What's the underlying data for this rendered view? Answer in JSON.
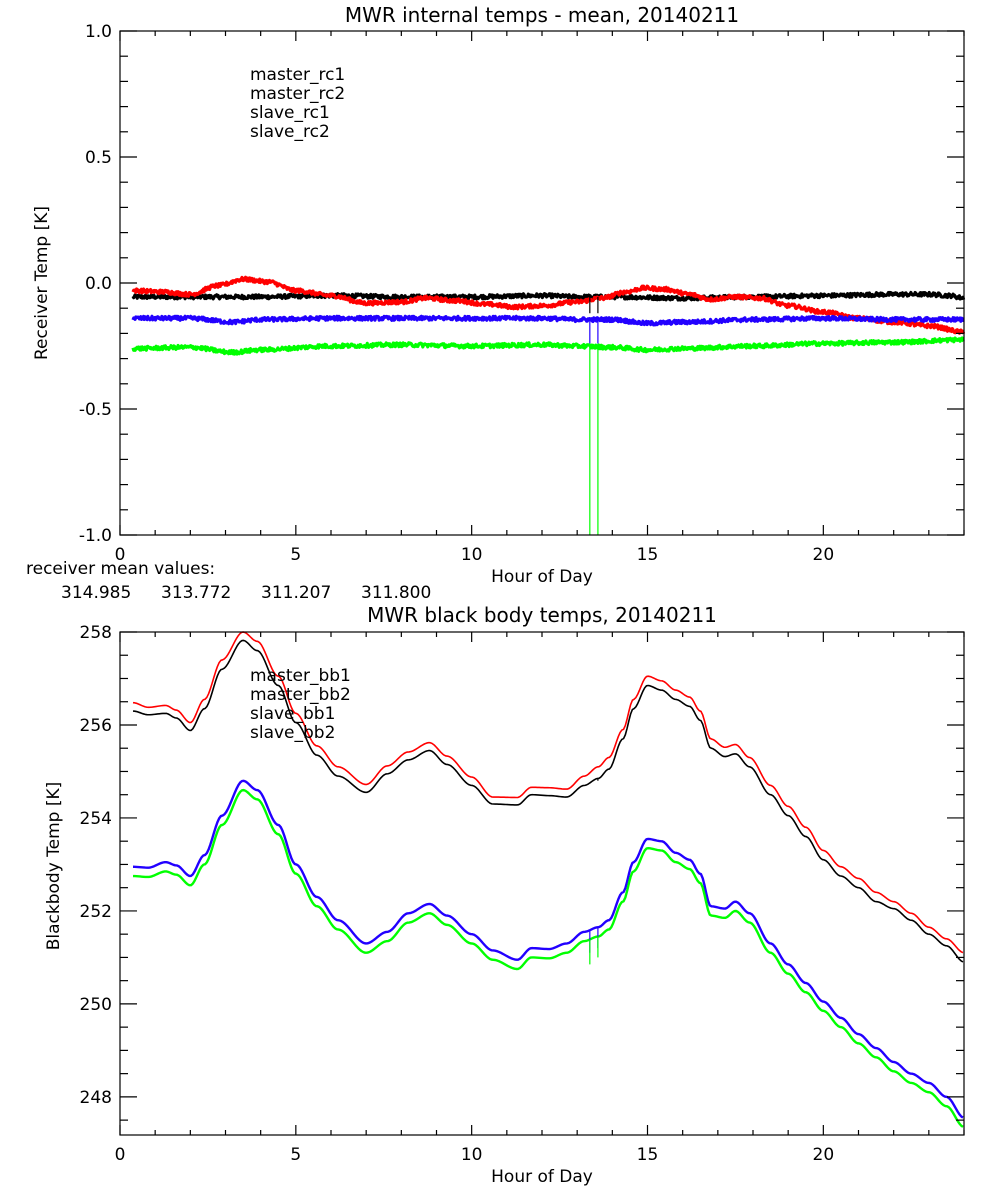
{
  "colors": {
    "master_1": "#000000",
    "master_2": "#ff0000",
    "slave_1": "#2200ff",
    "slave_2": "#00ff00",
    "axis": "#000000"
  },
  "chart_data": [
    {
      "type": "line",
      "title": "MWR internal temps - mean, 20140211",
      "xlabel": "Hour of Day",
      "ylabel": "Receiver Temp [K]",
      "xlim": [
        0,
        24
      ],
      "ylim": [
        -1.0,
        1.0
      ],
      "xticks": [
        0,
        5,
        10,
        15,
        20
      ],
      "xtick_labels": [
        "0",
        "5",
        "10",
        "15",
        "20"
      ],
      "xminor_step": 1,
      "yticks": [
        -1.0,
        -0.5,
        0.0,
        0.5,
        1.0
      ],
      "ytick_labels": [
        "-1.0",
        "-0.5",
        "0.0",
        "0.5",
        "1.0"
      ],
      "yminor_step": 0.1,
      "grid": false,
      "legend_position": "top-left",
      "noise": 0.008,
      "series": [
        {
          "name": "master_rc1",
          "color_key": "master_1",
          "x": [
            0.37,
            2,
            4,
            6,
            8,
            10,
            12,
            13,
            14,
            16,
            18,
            20,
            22,
            23,
            23.6,
            24
          ],
          "y": [
            -0.055,
            -0.055,
            -0.055,
            -0.05,
            -0.055,
            -0.055,
            -0.05,
            -0.055,
            -0.055,
            -0.06,
            -0.055,
            -0.05,
            -0.045,
            -0.045,
            -0.05,
            -0.06
          ]
        },
        {
          "name": "master_rc2",
          "color_key": "master_2",
          "x": [
            0.37,
            1.2,
            2.0,
            2.8,
            3.5,
            4.2,
            5.0,
            6.0,
            7.0,
            8.0,
            8.7,
            9.5,
            10.5,
            11.2,
            12.0,
            13.0,
            13.7,
            14.4,
            14.9,
            15.5,
            16.2,
            16.8,
            17.5,
            18.2,
            19.0,
            20.0,
            21.0,
            22.0,
            23.0,
            24.0
          ],
          "y": [
            -0.03,
            -0.035,
            -0.045,
            -0.01,
            0.015,
            0.005,
            -0.03,
            -0.05,
            -0.08,
            -0.075,
            -0.06,
            -0.07,
            -0.085,
            -0.095,
            -0.09,
            -0.075,
            -0.06,
            -0.035,
            -0.02,
            -0.025,
            -0.045,
            -0.065,
            -0.055,
            -0.06,
            -0.09,
            -0.115,
            -0.14,
            -0.155,
            -0.17,
            -0.195
          ]
        },
        {
          "name": "slave_rc1",
          "color_key": "slave_1",
          "x": [
            0.37,
            2,
            3.2,
            4,
            6,
            8,
            10,
            12,
            13,
            14,
            15,
            16,
            18,
            20,
            22,
            24
          ],
          "y": [
            -0.14,
            -0.14,
            -0.155,
            -0.145,
            -0.14,
            -0.14,
            -0.14,
            -0.14,
            -0.145,
            -0.145,
            -0.16,
            -0.155,
            -0.145,
            -0.14,
            -0.145,
            -0.145
          ]
        },
        {
          "name": "slave_rc2",
          "color_key": "slave_2",
          "x": [
            0.37,
            2,
            3.2,
            4,
            6,
            8,
            10,
            12,
            13,
            14,
            15,
            16,
            18,
            20,
            22,
            24
          ],
          "y": [
            -0.26,
            -0.255,
            -0.275,
            -0.265,
            -0.25,
            -0.245,
            -0.25,
            -0.245,
            -0.25,
            -0.255,
            -0.265,
            -0.26,
            -0.25,
            -0.24,
            -0.235,
            -0.225
          ]
        }
      ],
      "spikes": [
        {
          "series": "master_rc1",
          "x": 13.36,
          "y_to": -0.12
        },
        {
          "series": "master_rc1",
          "x": 13.59,
          "y_to": -0.12
        },
        {
          "series": "slave_rc1",
          "x": 13.36,
          "y_to": -0.24
        },
        {
          "series": "slave_rc1",
          "x": 13.59,
          "y_to": -0.24
        },
        {
          "series": "slave_rc2",
          "x": 13.36,
          "y_to": -1.0
        },
        {
          "series": "slave_rc2",
          "x": 13.59,
          "y_to": -1.0
        }
      ],
      "annotation": {
        "label": "receiver mean values:",
        "values": [
          {
            "text": "314.985",
            "color_key": "master_1"
          },
          {
            "text": "313.772",
            "color_key": "master_2"
          },
          {
            "text": "311.207",
            "color_key": "slave_1"
          },
          {
            "text": "311.800",
            "color_key": "slave_2"
          }
        ]
      }
    },
    {
      "type": "line",
      "title": "MWR black body temps, 20140211",
      "xlabel": "Hour of Day",
      "ylabel": "Blackbody Temp [K]",
      "xlim": [
        0,
        24
      ],
      "ylim": [
        247.18,
        258.0
      ],
      "xticks": [
        0,
        5,
        10,
        15,
        20
      ],
      "xtick_labels": [
        "0",
        "5",
        "10",
        "15",
        "20"
      ],
      "xminor_step": 1,
      "yticks": [
        248,
        250,
        252,
        254,
        256,
        258
      ],
      "ytick_labels": [
        "248",
        "250",
        "252",
        "254",
        "256",
        "258"
      ],
      "yminor_step": 0.5,
      "grid": false,
      "legend_position": "top-left",
      "noise": 0,
      "series": [
        {
          "name": "master_bb1",
          "color_key": "master_1",
          "x": [
            0.37,
            0.8,
            1.3,
            1.6,
            2.0,
            2.4,
            2.9,
            3.5,
            3.9,
            4.5,
            5.0,
            5.6,
            6.2,
            7.0,
            7.6,
            8.2,
            8.8,
            9.3,
            10.0,
            10.6,
            11.3,
            11.7,
            12.2,
            12.7,
            13.2,
            13.6,
            13.9,
            14.3,
            14.6,
            15.0,
            15.4,
            15.8,
            16.2,
            16.5,
            16.8,
            17.2,
            17.5,
            17.9,
            18.5,
            19.0,
            19.5,
            20.0,
            20.5,
            21.0,
            21.5,
            22.0,
            22.5,
            23.0,
            23.5,
            24.0
          ],
          "y": [
            256.3,
            256.22,
            256.25,
            256.15,
            255.88,
            256.35,
            257.2,
            257.82,
            257.6,
            256.85,
            256.05,
            255.35,
            254.9,
            254.55,
            254.95,
            255.25,
            255.45,
            255.15,
            254.7,
            254.3,
            254.28,
            254.5,
            254.48,
            254.45,
            254.7,
            254.85,
            255.05,
            255.7,
            256.35,
            256.85,
            256.75,
            256.55,
            256.4,
            256.1,
            255.5,
            255.32,
            255.38,
            255.1,
            254.5,
            254.05,
            253.6,
            253.1,
            252.75,
            252.5,
            252.2,
            252.05,
            251.8,
            251.5,
            251.25,
            250.9
          ]
        },
        {
          "name": "master_bb2",
          "color_key": "master_2",
          "x": [
            0.37,
            0.8,
            1.3,
            1.6,
            2.0,
            2.4,
            2.9,
            3.5,
            3.9,
            4.5,
            5.0,
            5.6,
            6.2,
            7.0,
            7.6,
            8.2,
            8.8,
            9.3,
            10.0,
            10.6,
            11.3,
            11.7,
            12.2,
            12.7,
            13.2,
            13.6,
            13.9,
            14.3,
            14.6,
            15.0,
            15.4,
            15.8,
            16.2,
            16.5,
            16.8,
            17.2,
            17.5,
            17.9,
            18.5,
            19.0,
            19.5,
            20.0,
            20.5,
            21.0,
            21.5,
            22.0,
            22.5,
            23.0,
            23.5,
            24.0
          ],
          "y": [
            256.48,
            256.38,
            256.42,
            256.32,
            256.05,
            256.55,
            257.4,
            258.0,
            257.8,
            257.05,
            256.25,
            255.55,
            255.1,
            254.72,
            255.12,
            255.42,
            255.62,
            255.33,
            254.88,
            254.45,
            254.44,
            254.66,
            254.65,
            254.62,
            254.9,
            255.1,
            255.3,
            255.9,
            256.55,
            257.05,
            256.95,
            256.75,
            256.6,
            256.3,
            255.7,
            255.52,
            255.58,
            255.3,
            254.7,
            254.25,
            253.8,
            253.3,
            252.95,
            252.7,
            252.4,
            252.2,
            251.95,
            251.65,
            251.4,
            251.1
          ]
        },
        {
          "name": "slave_bb1",
          "color_key": "slave_1",
          "x": [
            0.37,
            0.8,
            1.3,
            1.6,
            2.0,
            2.4,
            2.9,
            3.5,
            3.9,
            4.5,
            5.0,
            5.6,
            6.2,
            7.0,
            7.6,
            8.2,
            8.8,
            9.3,
            10.0,
            10.6,
            11.3,
            11.7,
            12.2,
            12.7,
            13.2,
            13.6,
            13.9,
            14.3,
            14.6,
            15.0,
            15.4,
            15.8,
            16.2,
            16.5,
            16.8,
            17.2,
            17.5,
            17.9,
            18.5,
            19.0,
            19.5,
            20.0,
            20.5,
            21.0,
            21.5,
            22.0,
            22.5,
            23.0,
            23.5,
            24.0
          ],
          "y": [
            252.95,
            252.93,
            253.05,
            252.98,
            252.75,
            253.2,
            254.05,
            254.8,
            254.6,
            253.85,
            253.0,
            252.3,
            251.8,
            251.3,
            251.55,
            251.95,
            252.15,
            251.9,
            251.5,
            251.15,
            250.95,
            251.2,
            251.18,
            251.3,
            251.55,
            251.65,
            251.8,
            252.4,
            253.05,
            253.55,
            253.5,
            253.25,
            253.1,
            252.8,
            252.1,
            252.05,
            252.2,
            251.95,
            251.3,
            250.85,
            250.45,
            250.05,
            249.7,
            249.35,
            249.05,
            248.75,
            248.5,
            248.3,
            248.0,
            247.55
          ]
        },
        {
          "name": "slave_bb2",
          "color_key": "slave_2",
          "x": [
            0.37,
            0.8,
            1.3,
            1.6,
            2.0,
            2.4,
            2.9,
            3.5,
            3.9,
            4.5,
            5.0,
            5.6,
            6.2,
            7.0,
            7.6,
            8.2,
            8.8,
            9.3,
            10.0,
            10.6,
            11.3,
            11.7,
            12.2,
            12.7,
            13.2,
            13.6,
            13.9,
            14.3,
            14.6,
            15.0,
            15.4,
            15.8,
            16.2,
            16.5,
            16.8,
            17.2,
            17.5,
            17.9,
            18.5,
            19.0,
            19.5,
            20.0,
            20.5,
            21.0,
            21.5,
            22.0,
            22.5,
            23.0,
            23.5,
            24.0
          ],
          "y": [
            252.75,
            252.73,
            252.85,
            252.78,
            252.55,
            253.0,
            253.85,
            254.6,
            254.4,
            253.65,
            252.8,
            252.1,
            251.6,
            251.1,
            251.35,
            251.75,
            251.95,
            251.7,
            251.3,
            250.95,
            250.75,
            251.0,
            250.98,
            251.1,
            251.35,
            251.45,
            251.6,
            252.2,
            252.85,
            253.35,
            253.3,
            253.05,
            252.9,
            252.6,
            251.9,
            251.85,
            252.0,
            251.75,
            251.1,
            250.65,
            250.25,
            249.85,
            249.5,
            249.15,
            248.85,
            248.55,
            248.3,
            248.1,
            247.8,
            247.35
          ]
        }
      ],
      "spikes": [
        {
          "series": "master_bb1",
          "x": 13.36,
          "y_to": 254.75
        },
        {
          "series": "master_bb1",
          "x": 13.59,
          "y_to": 254.8
        },
        {
          "series": "slave_bb1",
          "x": 13.36,
          "y_to": 251.1
        },
        {
          "series": "slave_bb1",
          "x": 13.59,
          "y_to": 251.2
        },
        {
          "series": "slave_bb2",
          "x": 13.36,
          "y_to": 250.85
        },
        {
          "series": "slave_bb2",
          "x": 13.59,
          "y_to": 251.0
        }
      ]
    }
  ]
}
